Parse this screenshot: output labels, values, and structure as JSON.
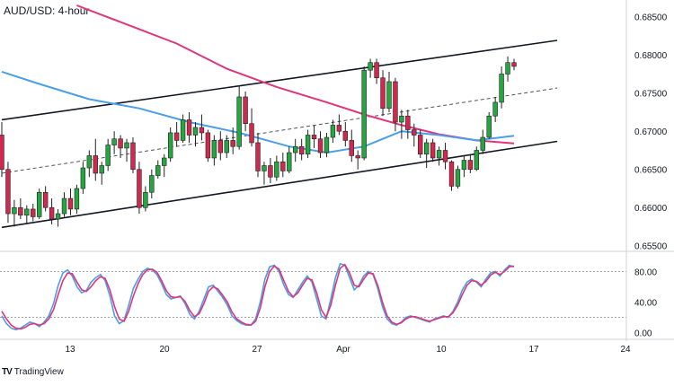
{
  "chart_data": [
    {
      "type": "candlestick",
      "title": "AUD/USD: 4-hour",
      "y_axis_ticks": [
        "0.68500",
        "0.68000",
        "0.67500",
        "0.67000",
        "0.66500",
        "0.66000",
        "0.65500"
      ],
      "ylim": [
        0.6545,
        0.6872
      ],
      "x_axis_ticks": [
        "13",
        "20",
        "27",
        "Apr",
        "10",
        "17",
        "24"
      ],
      "colors": {
        "up": "#26a641",
        "down": "#d1284f",
        "sma_slow": "#e0357a",
        "sma_fast": "#4a9fe8",
        "channel": "#131722"
      },
      "grid": false,
      "candles": [
        [
          0.6695,
          0.6712,
          0.664,
          0.665
        ],
        [
          0.665,
          0.666,
          0.658,
          0.6592
        ],
        [
          0.6592,
          0.661,
          0.6575,
          0.66
        ],
        [
          0.66,
          0.6612,
          0.6585,
          0.659
        ],
        [
          0.659,
          0.6603,
          0.6578,
          0.6598
        ],
        [
          0.6598,
          0.6605,
          0.6582,
          0.6588
        ],
        [
          0.6588,
          0.6625,
          0.6585,
          0.662
        ],
        [
          0.662,
          0.6628,
          0.6595,
          0.66
        ],
        [
          0.66,
          0.6612,
          0.6578,
          0.6585
        ],
        [
          0.6585,
          0.6598,
          0.6575,
          0.6592
        ],
        [
          0.6592,
          0.662,
          0.6588,
          0.6612
        ],
        [
          0.6612,
          0.6625,
          0.659,
          0.6598
        ],
        [
          0.6598,
          0.663,
          0.6592,
          0.6625
        ],
        [
          0.6625,
          0.666,
          0.6618,
          0.6652
        ],
        [
          0.6652,
          0.6675,
          0.664,
          0.6668
        ],
        [
          0.6668,
          0.669,
          0.6635,
          0.6645
        ],
        [
          0.6645,
          0.666,
          0.663,
          0.6655
        ],
        [
          0.6655,
          0.669,
          0.6648,
          0.6682
        ],
        [
          0.6682,
          0.67,
          0.667,
          0.669
        ],
        [
          0.669,
          0.6695,
          0.6665,
          0.6678
        ],
        [
          0.6678,
          0.669,
          0.666,
          0.6685
        ],
        [
          0.6685,
          0.6692,
          0.6645,
          0.665
        ],
        [
          0.665,
          0.666,
          0.6592,
          0.66
        ],
        [
          0.66,
          0.6628,
          0.6595,
          0.662
        ],
        [
          0.662,
          0.665,
          0.6612,
          0.6642
        ],
        [
          0.6642,
          0.6662,
          0.6638,
          0.6655
        ],
        [
          0.6655,
          0.667,
          0.664,
          0.6665
        ],
        [
          0.6665,
          0.6705,
          0.666,
          0.6698
        ],
        [
          0.6698,
          0.6712,
          0.668,
          0.6688
        ],
        [
          0.6688,
          0.6722,
          0.6685,
          0.6715
        ],
        [
          0.6715,
          0.6725,
          0.6685,
          0.6695
        ],
        [
          0.6695,
          0.6712,
          0.668,
          0.6705
        ],
        [
          0.6705,
          0.6722,
          0.6688,
          0.6698
        ],
        [
          0.6698,
          0.6702,
          0.666,
          0.6665
        ],
        [
          0.6665,
          0.6695,
          0.6655,
          0.6688
        ],
        [
          0.6688,
          0.67,
          0.6662,
          0.6672
        ],
        [
          0.6672,
          0.6695,
          0.6665,
          0.6688
        ],
        [
          0.6688,
          0.6705,
          0.667,
          0.668
        ],
        [
          0.668,
          0.676,
          0.6676,
          0.6745
        ],
        [
          0.6745,
          0.6752,
          0.67,
          0.671
        ],
        [
          0.671,
          0.673,
          0.668,
          0.6685
        ],
        [
          0.6685,
          0.6698,
          0.664,
          0.6648
        ],
        [
          0.6648,
          0.666,
          0.663,
          0.6655
        ],
        [
          0.6655,
          0.6665,
          0.6632,
          0.664
        ],
        [
          0.664,
          0.6668,
          0.6635,
          0.666
        ],
        [
          0.666,
          0.6672,
          0.664,
          0.6648
        ],
        [
          0.6648,
          0.668,
          0.6645,
          0.6672
        ],
        [
          0.6672,
          0.669,
          0.666,
          0.668
        ],
        [
          0.668,
          0.669,
          0.6662,
          0.667
        ],
        [
          0.667,
          0.6702,
          0.6665,
          0.6695
        ],
        [
          0.6695,
          0.6708,
          0.6678,
          0.669
        ],
        [
          0.669,
          0.67,
          0.6665,
          0.6672
        ],
        [
          0.6672,
          0.6698,
          0.6666,
          0.6692
        ],
        [
          0.6692,
          0.6715,
          0.6685,
          0.6708
        ],
        [
          0.6708,
          0.6722,
          0.6695,
          0.67
        ],
        [
          0.67,
          0.6712,
          0.668,
          0.6688
        ],
        [
          0.6688,
          0.6702,
          0.666,
          0.6668
        ],
        [
          0.6668,
          0.6675,
          0.665,
          0.6665
        ],
        [
          0.6665,
          0.6785,
          0.6662,
          0.678
        ],
        [
          0.678,
          0.6795,
          0.677,
          0.679
        ],
        [
          0.679,
          0.6795,
          0.6762,
          0.677
        ],
        [
          0.677,
          0.678,
          0.672,
          0.673
        ],
        [
          0.673,
          0.6778,
          0.6725,
          0.6765
        ],
        [
          0.6765,
          0.677,
          0.67,
          0.6712
        ],
        [
          0.6712,
          0.6728,
          0.669,
          0.672
        ],
        [
          0.672,
          0.6728,
          0.669,
          0.6702
        ],
        [
          0.6702,
          0.671,
          0.668,
          0.6695
        ],
        [
          0.6695,
          0.6702,
          0.6665,
          0.667
        ],
        [
          0.667,
          0.669,
          0.6652,
          0.6685
        ],
        [
          0.6685,
          0.669,
          0.666,
          0.6665
        ],
        [
          0.6665,
          0.668,
          0.6655,
          0.6675
        ],
        [
          0.6675,
          0.6685,
          0.665,
          0.666
        ],
        [
          0.666,
          0.6662,
          0.6622,
          0.6628
        ],
        [
          0.6628,
          0.6655,
          0.6625,
          0.665
        ],
        [
          0.665,
          0.6668,
          0.664,
          0.6662
        ],
        [
          0.6662,
          0.667,
          0.6645,
          0.665
        ],
        [
          0.665,
          0.668,
          0.6648,
          0.6675
        ],
        [
          0.6675,
          0.6702,
          0.667,
          0.6692
        ],
        [
          0.6692,
          0.6725,
          0.669,
          0.672
        ],
        [
          0.672,
          0.6745,
          0.6712,
          0.6738
        ],
        [
          0.6738,
          0.6785,
          0.673,
          0.6775
        ],
        [
          0.6775,
          0.6798,
          0.6765,
          0.679
        ],
        [
          0.679,
          0.6795,
          0.678,
          0.6785
        ]
      ],
      "channel_upper": [
        [
          0,
          0.6715
        ],
        [
          82,
          0.6811
        ]
      ],
      "channel_mid": [
        [
          0,
          0.6645
        ],
        [
          82,
          0.6748
        ]
      ],
      "channel_lower": [
        [
          0,
          0.6574
        ],
        [
          82,
          0.6678
        ]
      ],
      "sma_fast": [
        [
          0,
          0.6778
        ],
        [
          6,
          0.6762
        ],
        [
          14,
          0.6742
        ],
        [
          22,
          0.673
        ],
        [
          30,
          0.6712
        ],
        [
          38,
          0.6698
        ],
        [
          46,
          0.668
        ],
        [
          52,
          0.6672
        ],
        [
          58,
          0.668
        ],
        [
          64,
          0.67
        ],
        [
          70,
          0.6695
        ],
        [
          76,
          0.6688
        ],
        [
          82,
          0.6694
        ]
      ],
      "sma_slow": [
        [
          12,
          0.6865
        ],
        [
          20,
          0.684
        ],
        [
          28,
          0.6815
        ],
        [
          36,
          0.6782
        ],
        [
          44,
          0.6758
        ],
        [
          52,
          0.6738
        ],
        [
          58,
          0.6722
        ],
        [
          64,
          0.6708
        ],
        [
          70,
          0.6696
        ],
        [
          76,
          0.6688
        ],
        [
          82,
          0.6684
        ]
      ]
    },
    {
      "type": "line",
      "y_axis_ticks": [
        "80.00",
        "40.00",
        "0.00"
      ],
      "ylim": [
        -5,
        105
      ],
      "levels": [
        80,
        20
      ],
      "series": [
        {
          "color": "#4a9fe8",
          "values": [
            22,
            12,
            6,
            4,
            6,
            10,
            14,
            12,
            8,
            14,
            22,
            38,
            62,
            78,
            82,
            74,
            60,
            52,
            55,
            66,
            72,
            76,
            68,
            48,
            22,
            12,
            16,
            36,
            58,
            70,
            80,
            84,
            82,
            76,
            64,
            50,
            44,
            46,
            48,
            38,
            24,
            18,
            28,
            44,
            60,
            62,
            54,
            46,
            36,
            22,
            16,
            12,
            10,
            10,
            18,
            40,
            70,
            86,
            88,
            80,
            62,
            50,
            46,
            56,
            66,
            74,
            66,
            44,
            22,
            18,
            44,
            72,
            90,
            88,
            72,
            56,
            62,
            74,
            80,
            76,
            58,
            34,
            18,
            12,
            10,
            14,
            20,
            22,
            20,
            18,
            16,
            14,
            18,
            20,
            22,
            20,
            28,
            40,
            56,
            66,
            70,
            66,
            60,
            70,
            78,
            80,
            74,
            82,
            88,
            86
          ]
        },
        {
          "color": "#e0357a",
          "values": [
            28,
            18,
            10,
            6,
            5,
            7,
            11,
            12,
            10,
            12,
            18,
            30,
            50,
            68,
            78,
            77,
            66,
            56,
            54,
            60,
            68,
            73,
            71,
            56,
            34,
            18,
            15,
            28,
            48,
            64,
            76,
            82,
            83,
            79,
            68,
            55,
            47,
            46,
            47,
            41,
            29,
            21,
            25,
            38,
            54,
            60,
            57,
            49,
            40,
            27,
            18,
            14,
            11,
            10,
            15,
            32,
            60,
            80,
            87,
            83,
            68,
            54,
            47,
            52,
            62,
            71,
            69,
            52,
            30,
            20,
            36,
            62,
            84,
            89,
            78,
            62,
            60,
            70,
            78,
            77,
            62,
            40,
            22,
            14,
            11,
            13,
            18,
            21,
            21,
            19,
            17,
            15,
            17,
            19,
            21,
            21,
            26,
            36,
            50,
            62,
            68,
            67,
            62,
            67,
            75,
            79,
            76,
            80,
            86,
            87
          ]
        }
      ]
    }
  ]
}
